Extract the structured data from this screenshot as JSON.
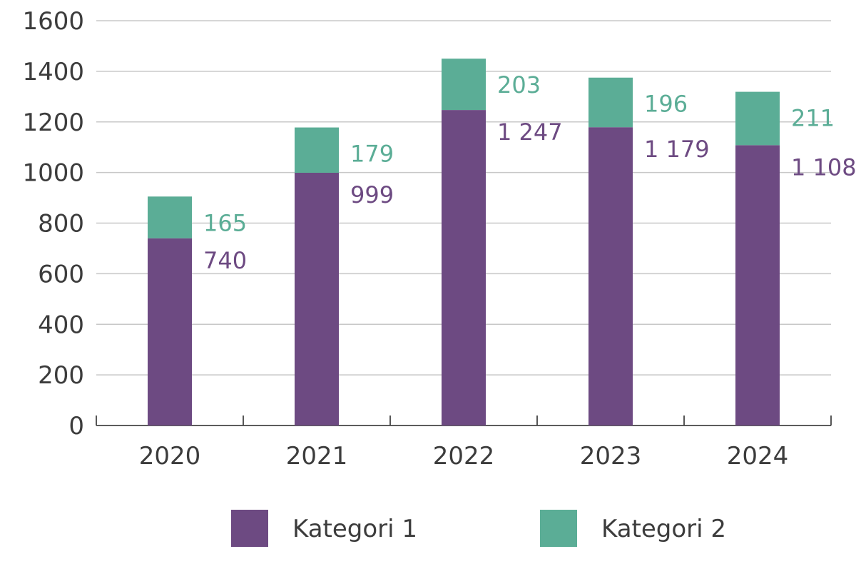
{
  "chart_data": {
    "type": "bar",
    "stacked": true,
    "title": "",
    "xlabel": "",
    "ylabel": "",
    "ylim": [
      0,
      1600
    ],
    "yticks": [
      0,
      200,
      400,
      600,
      800,
      1000,
      1200,
      1400,
      1600
    ],
    "ytick_labels": [
      "0",
      "200",
      "400",
      "600",
      "800",
      "1000",
      "1200",
      "1400",
      "1600"
    ],
    "grid": true,
    "categories": [
      "2020",
      "2021",
      "2022",
      "2023",
      "2024"
    ],
    "series": [
      {
        "name": "Kategori 1",
        "color": "#6d4a82",
        "values": [
          740,
          999,
          1247,
          1179,
          1108
        ],
        "labels": [
          "740",
          "999",
          "1 247",
          "1 179",
          "1 108"
        ]
      },
      {
        "name": "Kategori 2",
        "color": "#5bad96",
        "values": [
          165,
          179,
          203,
          196,
          211
        ],
        "labels": [
          "165",
          "179",
          "203",
          "196",
          "211"
        ]
      }
    ],
    "legend_position": "bottom"
  }
}
